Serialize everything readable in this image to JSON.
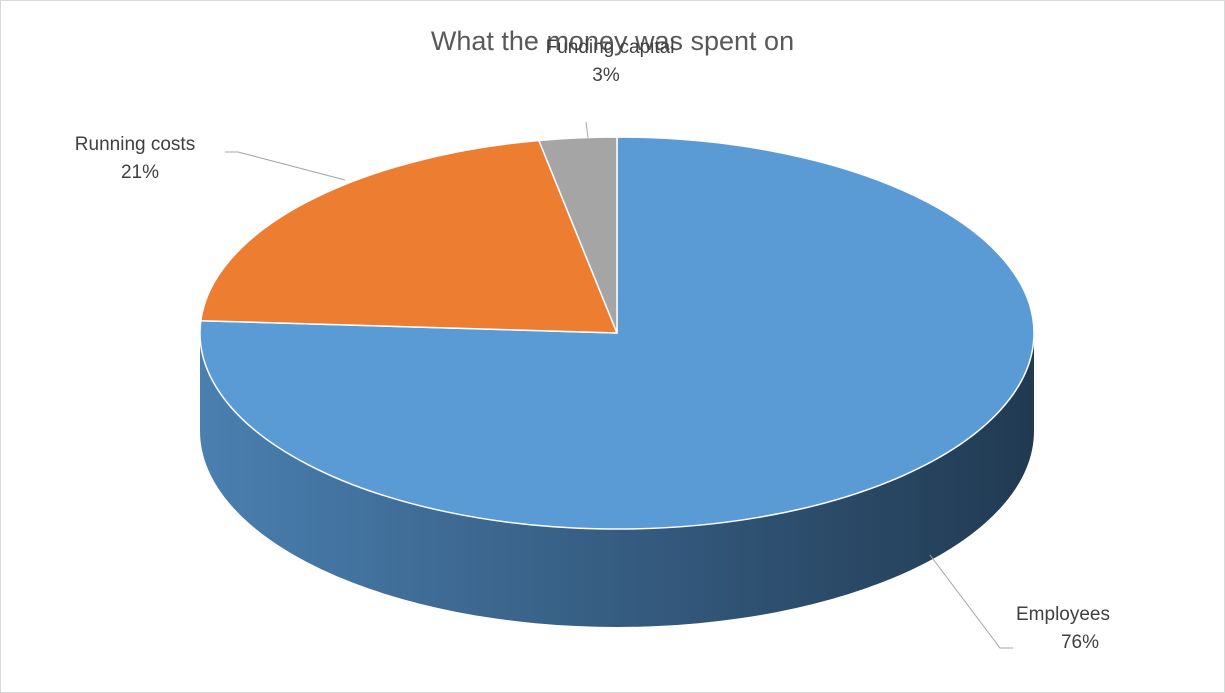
{
  "chart_data": {
    "type": "pie",
    "style": "3d",
    "title": "What the money was spent on",
    "slices": [
      {
        "label": "Employees",
        "value": 76,
        "pct_label": "76%",
        "color": "#5b9bd5",
        "side_dark": "#213a52",
        "side_light": "#4a7fb0"
      },
      {
        "label": "Running costs",
        "value": 21,
        "pct_label": "21%",
        "color": "#ed7d31"
      },
      {
        "label": "Funding capital",
        "value": 3,
        "pct_label": "3%",
        "color": "#a5a5a5"
      }
    ],
    "label_color": "#404040",
    "leader_line_color": "#a6a6a6"
  }
}
